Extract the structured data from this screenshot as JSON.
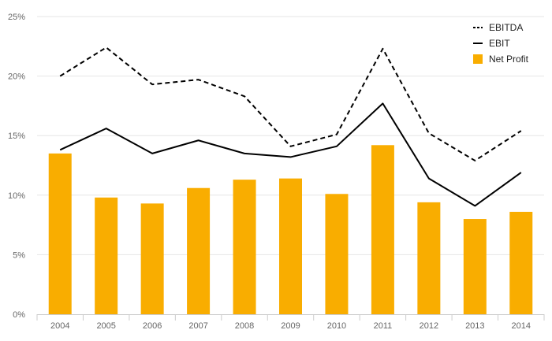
{
  "chart_data": {
    "type": "bar",
    "categories": [
      "2004",
      "2005",
      "2006",
      "2007",
      "2008",
      "2009",
      "2010",
      "2011",
      "2012",
      "2013",
      "2014"
    ],
    "ylim": [
      0,
      25
    ],
    "yticks": [
      0,
      5,
      10,
      15,
      20,
      25
    ],
    "ytick_labels": [
      "0%",
      "5%",
      "10%",
      "15%",
      "20%",
      "25%"
    ],
    "grid": true,
    "legend_position": "top-right",
    "series": [
      {
        "name": "EBITDA",
        "type": "line",
        "style": "dashed",
        "color": "#000000",
        "values": [
          20.0,
          22.4,
          19.3,
          19.7,
          18.3,
          14.1,
          15.1,
          22.3,
          15.2,
          12.9,
          15.4
        ]
      },
      {
        "name": "EBIT",
        "type": "line",
        "style": "solid",
        "color": "#000000",
        "values": [
          13.8,
          15.6,
          13.5,
          14.6,
          13.5,
          13.2,
          14.1,
          17.7,
          11.4,
          9.1,
          11.9
        ]
      },
      {
        "name": "Net Profit",
        "type": "bar",
        "color": "#f9ad00",
        "values": [
          13.5,
          9.8,
          9.3,
          10.6,
          11.3,
          11.4,
          10.1,
          14.2,
          9.4,
          8.0,
          8.6
        ]
      }
    ]
  }
}
